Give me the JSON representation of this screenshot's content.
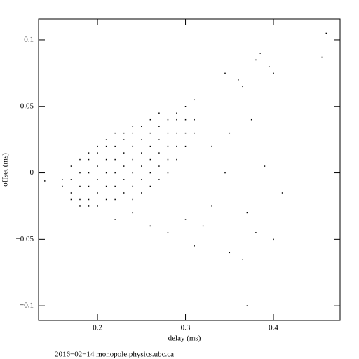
{
  "chart_data": {
    "type": "scatter",
    "xlabel": "delay (ms)",
    "ylabel": "offset (ms)",
    "footer": "2016−02−14 monopole.physics.ubc.ca",
    "color": "#000000",
    "xlim": [
      0.133,
      0.4757
    ],
    "ylim": [
      -0.111,
      0.1158
    ],
    "xticks": [
      0.2,
      0.3,
      0.4
    ],
    "yticks": [
      {
        "value": -0.1,
        "label": "−0.1"
      },
      {
        "value": -0.05,
        "label": "−0.05"
      },
      0,
      0.05,
      0.1
    ],
    "x": [
      0.16,
      0.16,
      0.17,
      0.17,
      0.17,
      0.17,
      0.18,
      0.18,
      0.18,
      0.18,
      0.18,
      0.19,
      0.19,
      0.19,
      0.19,
      0.19,
      0.19,
      0.2,
      0.2,
      0.2,
      0.2,
      0.2,
      0.2,
      0.21,
      0.21,
      0.21,
      0.21,
      0.21,
      0.21,
      0.22,
      0.22,
      0.22,
      0.22,
      0.22,
      0.22,
      0.23,
      0.23,
      0.23,
      0.23,
      0.23,
      0.23,
      0.24,
      0.24,
      0.24,
      0.24,
      0.24,
      0.24,
      0.24,
      0.25,
      0.25,
      0.25,
      0.25,
      0.25,
      0.25,
      0.26,
      0.26,
      0.26,
      0.26,
      0.26,
      0.26,
      0.27,
      0.27,
      0.27,
      0.27,
      0.27,
      0.27,
      0.28,
      0.28,
      0.28,
      0.28,
      0.28,
      0.29,
      0.29,
      0.29,
      0.29,
      0.29,
      0.3,
      0.3,
      0.3,
      0.3,
      0.31,
      0.31,
      0.31,
      0.345,
      0.36,
      0.365,
      0.385,
      0.38,
      0.395,
      0.4,
      0.455,
      0.46,
      0.345,
      0.33,
      0.35,
      0.37,
      0.38,
      0.4,
      0.39,
      0.35,
      0.365,
      0.37,
      0.31,
      0.32,
      0.33,
      0.375,
      0.41,
      0.14,
      0.3,
      0.28,
      0.26,
      0.24,
      0.22
    ],
    "values": [
      -0.005,
      -0.01,
      -0.015,
      -0.005,
      0.005,
      -0.02,
      -0.02,
      -0.01,
      0,
      0.01,
      -0.025,
      -0.02,
      -0.01,
      0,
      0.01,
      0.015,
      -0.025,
      -0.025,
      -0.015,
      -0.005,
      0.005,
      0.015,
      0.02,
      -0.02,
      -0.01,
      0,
      0.01,
      0.02,
      0.025,
      -0.02,
      -0.01,
      0,
      0.01,
      0.02,
      0.03,
      -0.015,
      -0.005,
      0.005,
      0.015,
      0.025,
      0.03,
      -0.02,
      -0.01,
      0,
      0.01,
      0.02,
      0.03,
      0.035,
      -0.015,
      -0.005,
      0.005,
      0.015,
      0.025,
      0.035,
      -0.01,
      0,
      0.01,
      0.02,
      0.03,
      0.04,
      -0.005,
      0.005,
      0.015,
      0.025,
      0.035,
      0.045,
      0,
      0.01,
      0.02,
      0.03,
      0.04,
      0.01,
      0.02,
      0.03,
      0.04,
      0.045,
      0.02,
      0.03,
      0.04,
      0.05,
      0.03,
      0.04,
      0.055,
      0.075,
      0.07,
      0.065,
      0.09,
      0.085,
      0.08,
      0.075,
      0.087,
      0.105,
      0,
      0.02,
      0.03,
      -0.03,
      -0.045,
      -0.05,
      0.005,
      -0.06,
      -0.065,
      -0.1,
      -0.055,
      -0.04,
      -0.025,
      0.04,
      -0.015,
      -0.006,
      -0.035,
      -0.045,
      -0.04,
      -0.03,
      -0.035
    ]
  }
}
